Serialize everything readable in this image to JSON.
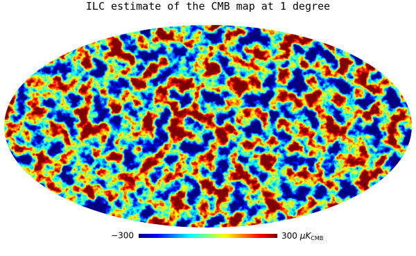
{
  "title": "ILC estimate of the CMB map at 1 degree",
  "colorbar": {
    "ticks": [
      {
        "value": -300,
        "label": "−300"
      },
      300
    ],
    "unit": "μK",
    "unit_subscript": "CMB"
  }
}
